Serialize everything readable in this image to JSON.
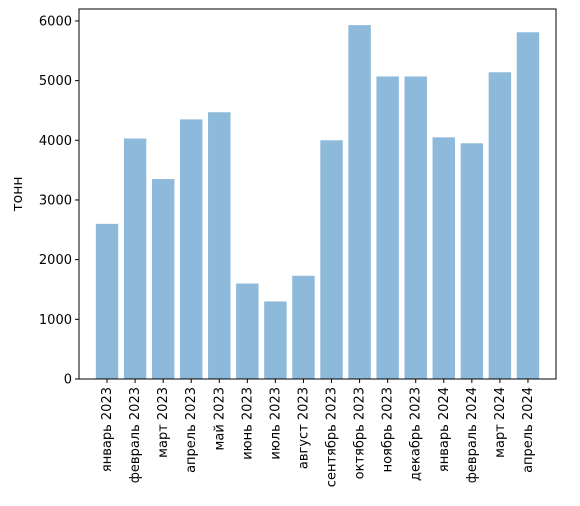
{
  "chart_data": {
    "type": "bar",
    "title": "",
    "xlabel": "",
    "ylabel": "тонн",
    "ylim": [
      0,
      6200
    ],
    "yticks": [
      0,
      1000,
      2000,
      3000,
      4000,
      5000,
      6000
    ],
    "grid": false,
    "legend": "none",
    "bar_color": "#8DB9DA",
    "categories": [
      "январь 2023",
      "февраль 2023",
      "март 2023",
      "апрель 2023",
      "май 2023",
      "июнь 2023",
      "июль 2023",
      "август 2023",
      "сентябрь 2023",
      "октябрь 2023",
      "ноябрь 2023",
      "декабрь 2023",
      "январь 2024",
      "февраль 2024",
      "март 2024",
      "апрель 2024"
    ],
    "values": [
      2600,
      4030,
      3350,
      4350,
      4470,
      1600,
      1300,
      1730,
      4000,
      5930,
      5070,
      5070,
      4050,
      3950,
      5140,
      5810
    ]
  }
}
